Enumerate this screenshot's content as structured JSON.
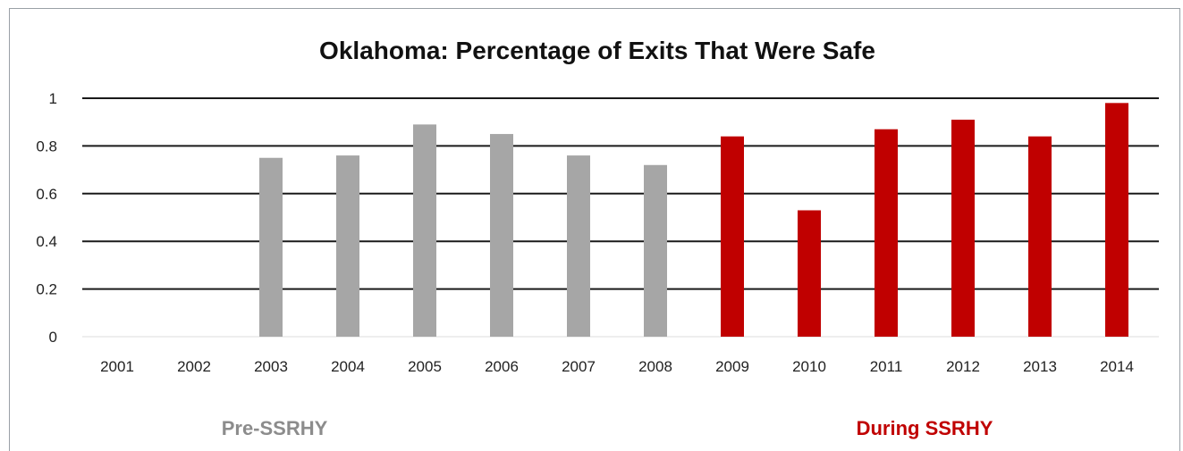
{
  "chart_data": {
    "type": "bar",
    "title": "Oklahoma: Percentage of Exits That Were Safe",
    "xlabel": "",
    "ylabel": "",
    "ylim": [
      0,
      1
    ],
    "yticks": [
      "0",
      "0.2",
      "0.4",
      "0.6",
      "0.8",
      "1"
    ],
    "grid": true,
    "legend": "none",
    "categories": [
      "2001",
      "2002",
      "2003",
      "2004",
      "2005",
      "2006",
      "2007",
      "2008",
      "2009",
      "2010",
      "2011",
      "2012",
      "2013",
      "2014"
    ],
    "values": [
      null,
      null,
      0.75,
      0.76,
      0.89,
      0.85,
      0.76,
      0.72,
      0.84,
      0.53,
      0.87,
      0.91,
      0.84,
      0.98
    ],
    "groups": [
      {
        "label": "Pre-SSRHY",
        "categories": [
          "2001",
          "2002",
          "2003",
          "2004",
          "2005",
          "2006",
          "2007",
          "2008"
        ],
        "color": "#a6a6a6"
      },
      {
        "label": "During SSRHY",
        "categories": [
          "2009",
          "2010",
          "2011",
          "2012",
          "2013",
          "2014"
        ],
        "color": "#c00000"
      }
    ]
  }
}
